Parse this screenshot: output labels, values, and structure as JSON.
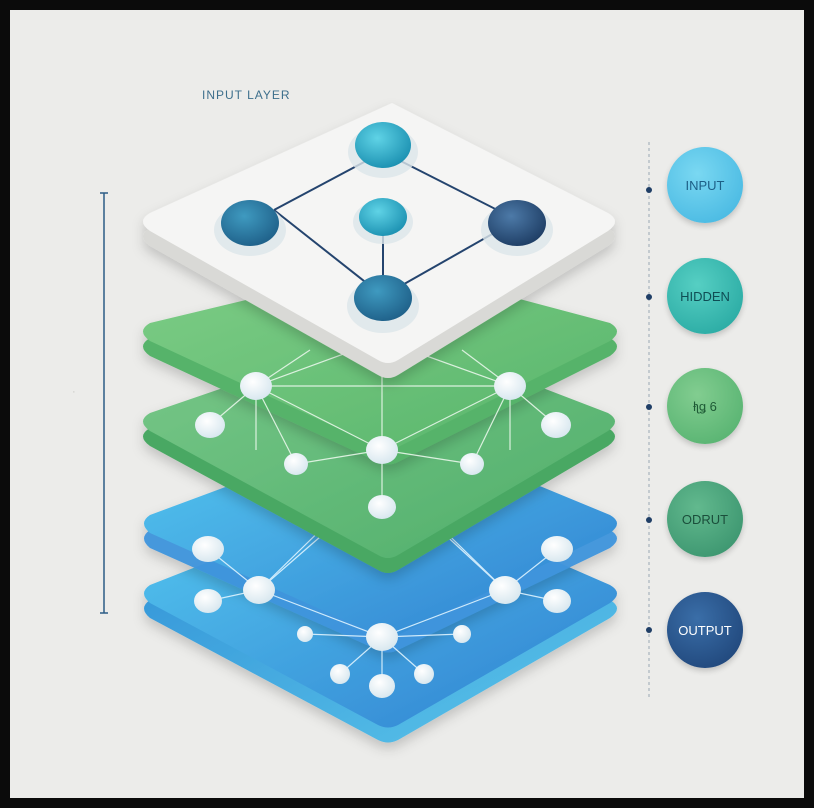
{
  "top_label": "INPUT LAYER",
  "side_mark": "·",
  "layers": [
    {
      "name": "input-layer",
      "color": "#f3f3f2"
    },
    {
      "name": "hidden-layer-1",
      "color": "#62bf74"
    },
    {
      "name": "hidden-layer-2",
      "color": "#5aa96a"
    },
    {
      "name": "output-layer-1",
      "color": "#4aa6df"
    },
    {
      "name": "output-layer-2",
      "color": "#4fb3e6"
    }
  ],
  "legend": [
    {
      "id": "input",
      "label": "INPUT",
      "color": "#4bbee0",
      "text_color": "#1d5f86"
    },
    {
      "id": "hidden",
      "label": "HIDDEN",
      "color": "#2bb1a8",
      "text_color": "#0f4d54"
    },
    {
      "id": "hidden-2",
      "label": "ƚʅǥ 6",
      "color": "#53b474",
      "text_color": "#1f5b36"
    },
    {
      "id": "output-mid",
      "label": "ODRUT",
      "color": "#3d9f76",
      "text_color": "#1b4e3b"
    },
    {
      "id": "output",
      "label": "OUTPUT",
      "color": "#1f4f8a",
      "text_color": "#ffffff"
    }
  ],
  "colors": {
    "background": "#ececea",
    "line": "#24446e",
    "node_teal": "#27a7c0",
    "node_navy": "#2a4a72",
    "node_white": "#ffffff"
  }
}
